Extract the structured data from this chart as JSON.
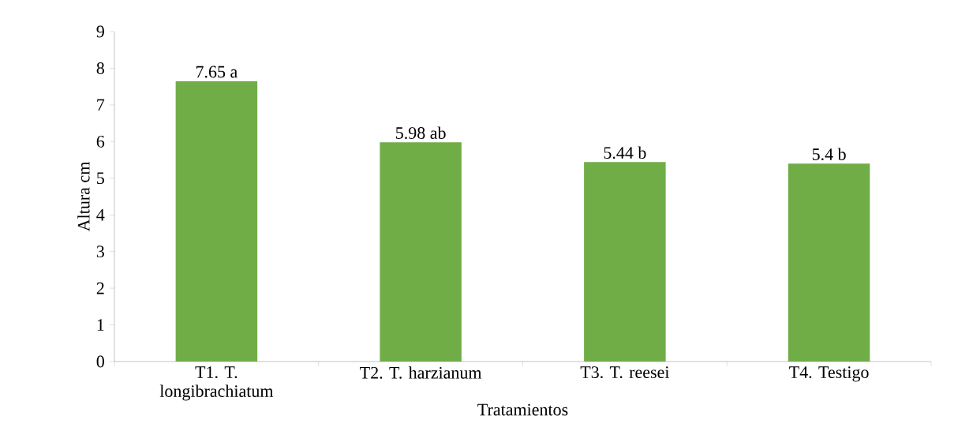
{
  "chart_data": {
    "type": "bar",
    "xlabel": "Tratamientos",
    "ylabel": "Altura cm",
    "categories": [
      "T1. T. longibrachiatum",
      "T2. T. harzianum",
      "T3. T. reesei",
      "T4. Testigo"
    ],
    "values": [
      7.65,
      5.98,
      5.44,
      5.4
    ],
    "value_labels": [
      "7.65 a",
      "5.98 ab",
      "5.44 b",
      "5.4 b"
    ],
    "color": "#70ad47",
    "ylim": [
      0,
      9
    ],
    "yticks": [
      0,
      1,
      2,
      3,
      4,
      5,
      6,
      7,
      8,
      9
    ],
    "grid": false
  }
}
